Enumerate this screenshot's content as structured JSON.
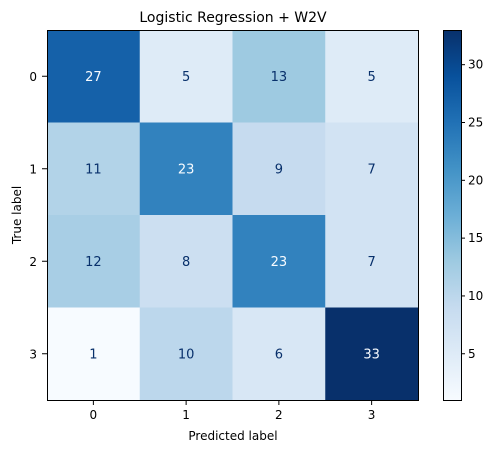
{
  "chart_data": {
    "type": "heatmap",
    "title": "Logistic Regression + W2V",
    "xlabel": "Predicted label",
    "ylabel": "True label",
    "x_categories": [
      "0",
      "1",
      "2",
      "3"
    ],
    "y_categories": [
      "0",
      "1",
      "2",
      "3"
    ],
    "matrix": [
      [
        27,
        5,
        13,
        5
      ],
      [
        11,
        23,
        9,
        7
      ],
      [
        12,
        8,
        23,
        7
      ],
      [
        1,
        10,
        6,
        33
      ]
    ],
    "colormap": "Blues",
    "color_range": [
      1,
      33
    ],
    "colorbar_ticks": [
      5,
      10,
      15,
      20,
      25,
      30
    ],
    "colors": {
      "low": "#f7fbff",
      "high": "#08306b",
      "text_dark_cell": "#f7fbff",
      "text_light_cell": "#08306b"
    }
  }
}
